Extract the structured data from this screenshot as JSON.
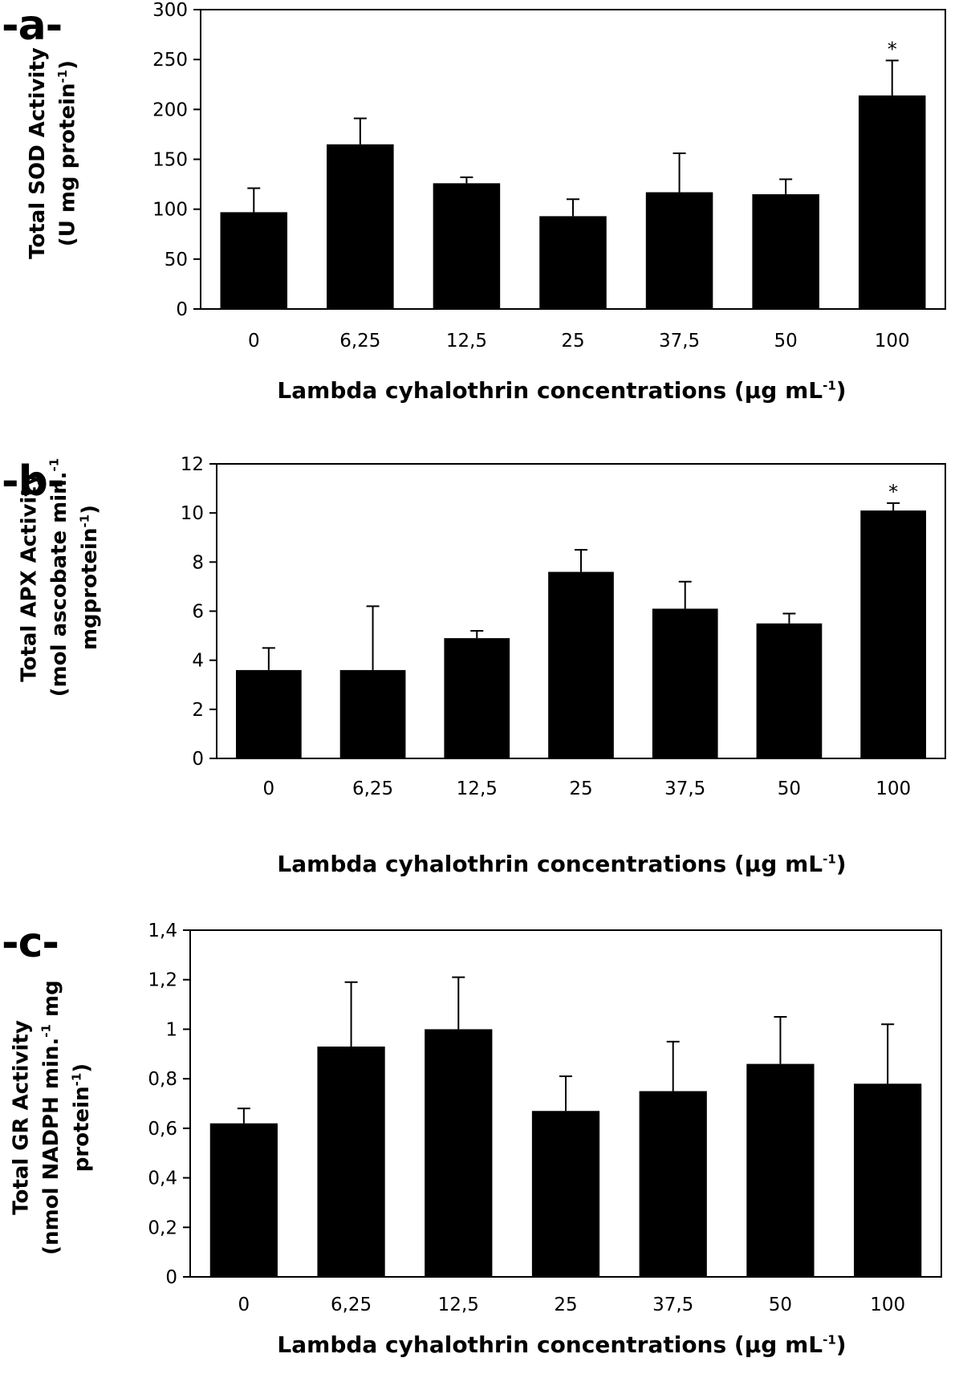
{
  "chart_data": [
    {
      "type": "bar",
      "panel_label": "-a-",
      "categories": [
        "0",
        "6,25",
        "12,5",
        "25",
        "37,5",
        "50",
        "100"
      ],
      "values": [
        97,
        165,
        126,
        93,
        117,
        115,
        214
      ],
      "errors": [
        24,
        26,
        6,
        17,
        39,
        15,
        35
      ],
      "annotations": [
        "",
        "",
        "",
        "",
        "",
        "",
        "*"
      ],
      "ylim": [
        0,
        300
      ],
      "yticks": [
        "0",
        "50",
        "100",
        "150",
        "200",
        "250",
        "300"
      ],
      "ylabel_line1": "Total SOD Activity",
      "ylabel_line2": "(U mg protein",
      "ylabel_line2_sup": "-1",
      "ylabel_line2_end": ")",
      "ylabel_line3": "",
      "xlabel": "Lambda cyhalothrin concentrations  (µg mL",
      "xlabel_sup": "-1",
      "xlabel_end": ")"
    },
    {
      "type": "bar",
      "panel_label": "-b-",
      "categories": [
        "0",
        "6,25",
        "12,5",
        "25",
        "37,5",
        "50",
        "100"
      ],
      "values": [
        3.6,
        3.6,
        4.9,
        7.6,
        6.1,
        5.5,
        10.1
      ],
      "errors": [
        0.9,
        2.6,
        0.3,
        0.9,
        1.1,
        0.4,
        0.3
      ],
      "annotations": [
        "",
        "",
        "",
        "",
        "",
        "",
        "*"
      ],
      "ylim": [
        0,
        12
      ],
      "yticks": [
        "0",
        "2",
        "4",
        "6",
        "8",
        "10",
        "12"
      ],
      "ylabel_line1": "Total APX  Activity",
      "ylabel_line2": "(mol ascobate min.",
      "ylabel_line2_sup": "-1",
      "ylabel_line2_end": "",
      "ylabel_line3": "mgprotein",
      "ylabel_line3_sup": "-1",
      "ylabel_line3_end": ")",
      "xlabel": "Lambda cyhalothrin  concentrations  (µg mL",
      "xlabel_sup": "-1",
      "xlabel_end": ")"
    },
    {
      "type": "bar",
      "panel_label": "-c-",
      "categories": [
        "0",
        "6,25",
        "12,5",
        "25",
        "37,5",
        "50",
        "100"
      ],
      "values": [
        0.62,
        0.93,
        1.0,
        0.67,
        0.75,
        0.86,
        0.78
      ],
      "errors": [
        0.06,
        0.26,
        0.21,
        0.14,
        0.2,
        0.19,
        0.24
      ],
      "annotations": [
        "",
        "",
        "",
        "",
        "",
        "",
        ""
      ],
      "ylim": [
        0,
        1.4
      ],
      "yticks": [
        "0",
        "0,2",
        "0,4",
        "0,6",
        "0,8",
        "1",
        "1,2",
        "1,4"
      ],
      "ylabel_line1": "Total GR Activity",
      "ylabel_line2": "(nmol NADPH min.",
      "ylabel_line2_sup": "-1",
      "ylabel_line2_end": " mg",
      "ylabel_line3": "protein",
      "ylabel_line3_sup": "-1",
      "ylabel_line3_end": ")",
      "xlabel": "Lambda cyhalothrin concentrations  (µg mL",
      "xlabel_sup": "-1",
      "xlabel_end": ")"
    }
  ]
}
